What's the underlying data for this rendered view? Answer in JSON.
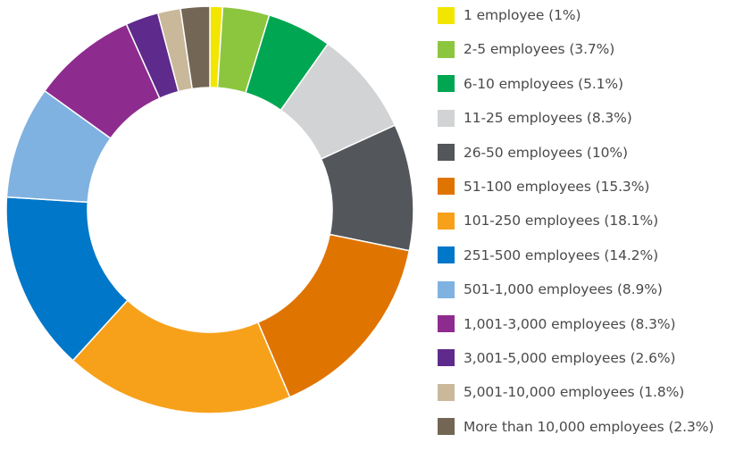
{
  "chart_data": {
    "type": "pie",
    "variant": "donut",
    "title": "",
    "legend_position": "right",
    "slices": [
      {
        "label": "1 employee (1%)",
        "value": 1.0,
        "color": "#f2e600"
      },
      {
        "label": "2-5 employees (3.7%)",
        "value": 3.7,
        "color": "#8cc63f"
      },
      {
        "label": "6-10 employees (5.1%)",
        "value": 5.1,
        "color": "#00a651"
      },
      {
        "label": "11-25 employees (8.3%)",
        "value": 8.3,
        "color": "#d1d3d4"
      },
      {
        "label": "26-50 employees (10%)",
        "value": 10.0,
        "color": "#53565a"
      },
      {
        "label": "51-100 employees (15.3%)",
        "value": 15.3,
        "color": "#e07400"
      },
      {
        "label": "101-250 employees (18.1%)",
        "value": 18.1,
        "color": "#f7a11a"
      },
      {
        "label": "251-500 employees (14.2%)",
        "value": 14.2,
        "color": "#0077c8"
      },
      {
        "label": "501-1,000 employees (8.9%)",
        "value": 8.9,
        "color": "#7fb2e0"
      },
      {
        "label": "1,001-3,000 employees (8.3%)",
        "value": 8.3,
        "color": "#8e2b8f"
      },
      {
        "label": "3,001-5,000 employees (2.6%)",
        "value": 2.6,
        "color": "#5e2a8c"
      },
      {
        "label": "5,001-10,000 employees (1.8%)",
        "value": 1.8,
        "color": "#c9b99a"
      },
      {
        "label": "More than 10,000 employees (2.3%)",
        "value": 2.3,
        "color": "#736654"
      }
    ]
  }
}
